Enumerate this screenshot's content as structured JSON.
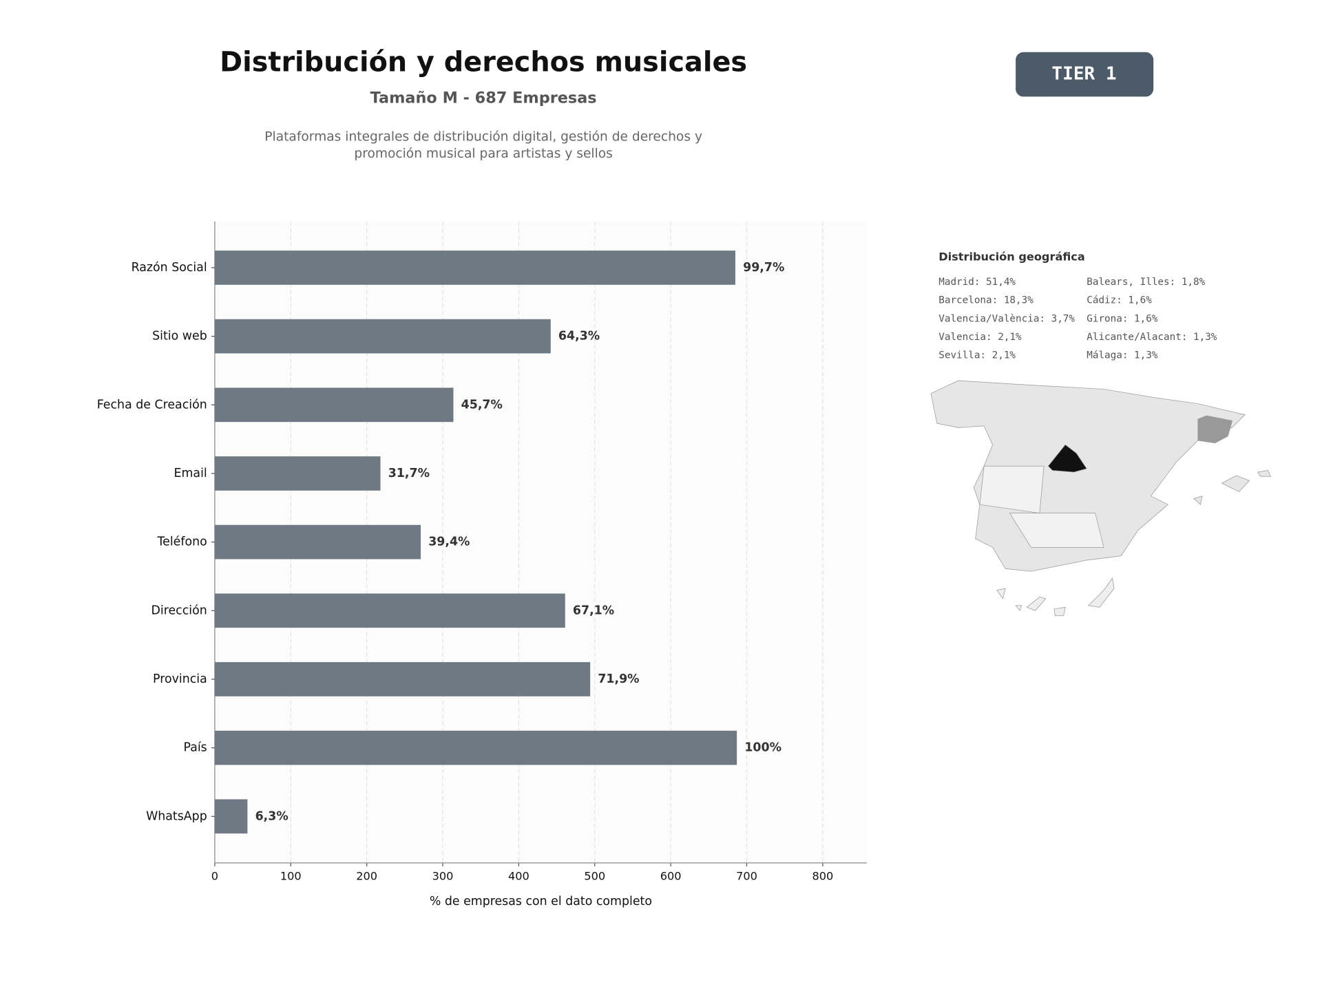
{
  "chart_data": {
    "type": "barh",
    "title": "Distribución y derechos musicales",
    "subtitle": "Tamaño M - 687 Empresas",
    "description": [
      "Plataformas integrales de distribución digital, gestión de derechos y",
      "promoción musical para artistas y sellos"
    ],
    "badge": "TIER 1",
    "xlabel": "% de empresas con el dato completo",
    "categories": [
      "Razón Social",
      "Sitio web",
      "Fecha de Creación",
      "Email",
      "Teléfono",
      "Dirección",
      "Provincia",
      "País",
      "WhatsApp"
    ],
    "values": [
      685,
      442,
      314,
      218,
      271,
      461,
      494,
      687,
      43
    ],
    "value_labels": [
      "99,7%",
      "64,3%",
      "45,7%",
      "31,7%",
      "39,4%",
      "67,1%",
      "71,9%",
      "100%",
      "6,3%"
    ],
    "color": "#6e7983",
    "xlim": [
      0,
      858
    ],
    "xticks": [
      0,
      100,
      200,
      300,
      400,
      500,
      600,
      700,
      800
    ],
    "grid": true,
    "geo": {
      "title": "Distribución geográfica",
      "items": [
        "Madrid: 51,4%",
        "Barcelona: 18,3%",
        "Valencia/València: 3,7%",
        "Valencia: 2,1%",
        "Sevilla: 2,1%",
        "Balears, Illes: 1,8%",
        "Cádiz: 1,6%",
        "Girona: 1,6%",
        "Alicante/Alacant: 1,3%",
        "Málaga: 1,3%"
      ]
    }
  }
}
